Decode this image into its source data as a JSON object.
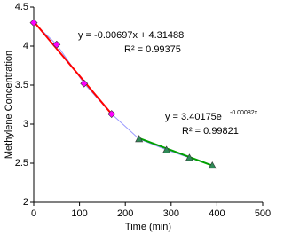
{
  "chart_data": {
    "type": "scatter",
    "xlabel": "Time (min)",
    "ylabel": "Methylene Concentration",
    "xlim": [
      0,
      500
    ],
    "ylim": [
      2,
      4.5
    ],
    "xticks": [
      0,
      100,
      200,
      300,
      400,
      500
    ],
    "yticks": [
      2,
      2.5,
      3,
      3.5,
      4,
      4.5
    ],
    "grid": false,
    "line_color": "#9999ff",
    "series": [
      {
        "color": "#ff00ff",
        "marker": "diamond",
        "x": [
          0,
          50,
          110,
          170
        ],
        "values": [
          4.3,
          4.02,
          3.52,
          3.13
        ]
      },
      {
        "color": "#2e8b57",
        "marker": "triangle",
        "x": [
          230,
          290,
          340,
          390
        ],
        "values": [
          2.81,
          2.67,
          2.57,
          2.47
        ]
      }
    ],
    "trendlines": [
      {
        "color": "#ff0000",
        "x": [
          0,
          170
        ],
        "values": [
          4.315,
          3.13
        ]
      },
      {
        "color": "#00a000",
        "x": [
          230,
          390
        ],
        "values": [
          2.82,
          2.47
        ]
      }
    ],
    "annotations": [
      "y = -0.00697x + 4.31488",
      "R² = 0.99375",
      "y = 3.40175e",
      "-0.00082x",
      "R² = 0.99821"
    ]
  }
}
